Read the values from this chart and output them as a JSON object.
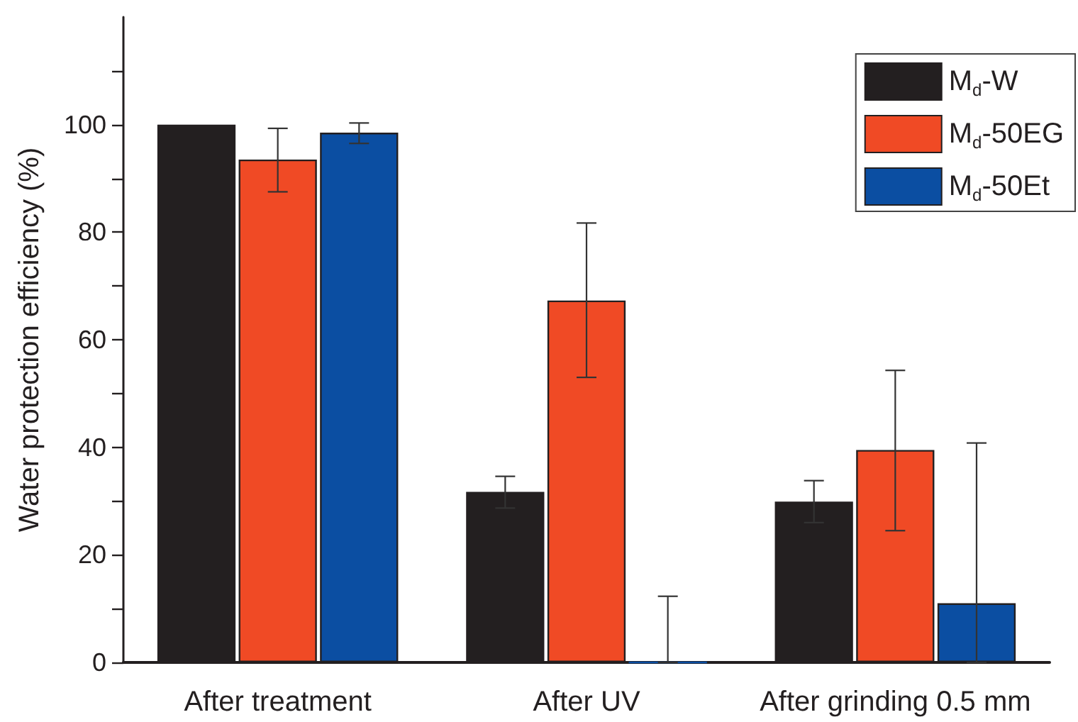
{
  "chart_data": {
    "type": "bar",
    "ylabel": "Water protection efficiency (%)",
    "categories": [
      "After treatment",
      "After UV",
      "After grinding 0.5 mm"
    ],
    "series": [
      {
        "name": "M$_{d}$-W",
        "color": "#231f20",
        "values": [
          100,
          31.7,
          29.9
        ],
        "errors": [
          null,
          [
            28.7,
            34.6
          ],
          [
            26,
            33.8
          ]
        ]
      },
      {
        "name": "M$_{d}$-50EG",
        "color": "#f04a25",
        "values": [
          93.5,
          67.3,
          39.5
        ],
        "errors": [
          [
            87.5,
            99.3
          ],
          [
            53,
            81.7
          ],
          [
            24.5,
            54.3
          ]
        ]
      },
      {
        "name": "M$_{d}$-50Et",
        "color": "#0b4ea2",
        "values": [
          98.5,
          0,
          11
        ],
        "errors": [
          [
            96.5,
            100.3
          ],
          [
            0,
            12.3
          ],
          [
            0,
            40.8
          ]
        ]
      }
    ],
    "ylim": [
      0,
      120
    ],
    "yticks": [
      0,
      {
        "value": 10,
        "label": null
      },
      20,
      {
        "value": 30,
        "label": null
      },
      40,
      {
        "value": 50,
        "label": null
      },
      60,
      {
        "value": 70,
        "label": null
      },
      80,
      {
        "value": 90,
        "label": null
      },
      100,
      {
        "value": 110,
        "label": null
      }
    ],
    "legend": "top right"
  }
}
